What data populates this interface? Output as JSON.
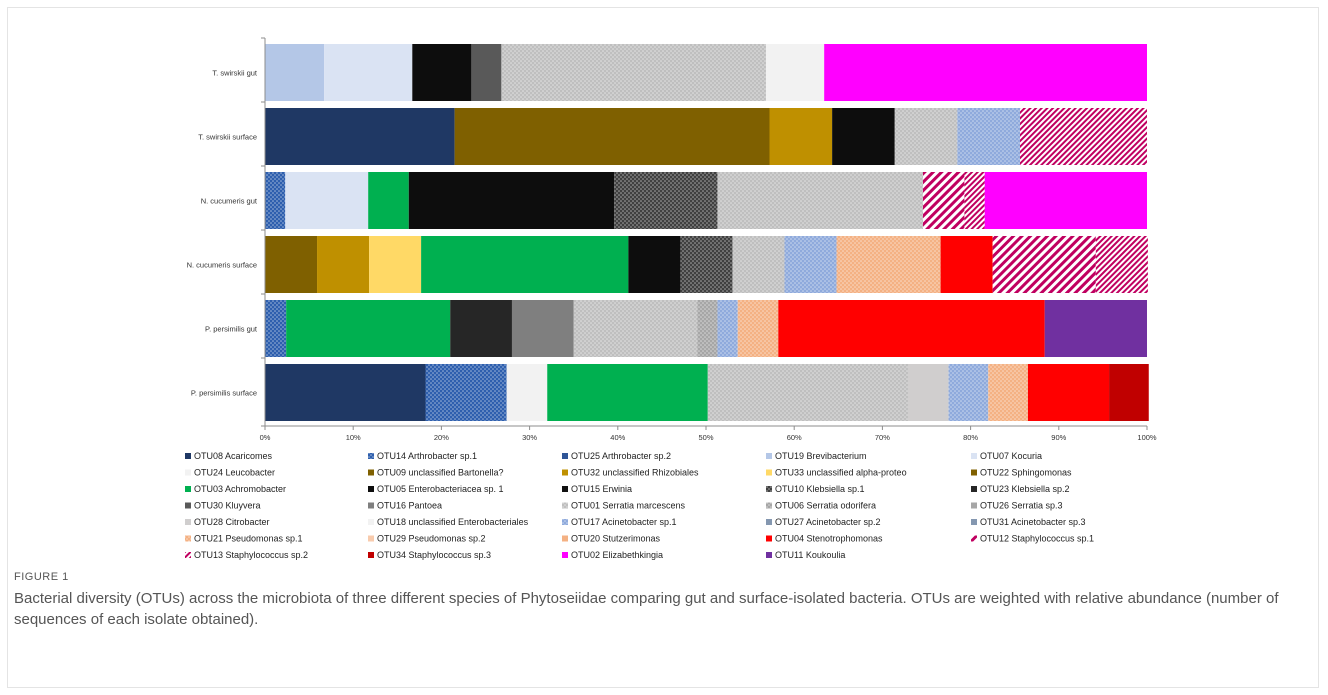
{
  "caption": {
    "label": "FIGURE 1",
    "text": "Bacterial diversity (OTUs) across the microbiota of three different species of Phytoseiidae comparing gut and surface-isolated bacteria. OTUs are weighted with relative abundance (number of sequences of each isolate obtained)."
  },
  "chart_data": {
    "type": "bar",
    "orientation": "horizontal",
    "stacked": true,
    "title": "",
    "xlabel": "",
    "ylabel": "",
    "xlim": [
      0,
      100
    ],
    "x_ticks": [
      "0%",
      "10%",
      "20%",
      "30%",
      "40%",
      "50%",
      "60%",
      "70%",
      "80%",
      "90%",
      "100%"
    ],
    "legend_position": "bottom",
    "grid": false,
    "categories": [
      "T. swirskii gut",
      "T. swirskii surface",
      "N. cucumeris gut",
      "N. cucumeris surface",
      "P. persimilis gut",
      "P. persimilis surface"
    ],
    "series": [
      {
        "name": "OTU08 Acaricomes",
        "color": "#1f3864",
        "pattern": "solid",
        "values": [
          0,
          21.5,
          0,
          0,
          0,
          18.2
        ]
      },
      {
        "name": "OTU14 Arthrobacter sp.1",
        "color": "#2e5fae",
        "pattern": "dots",
        "values": [
          0,
          0,
          2.3,
          0,
          2.4,
          9.2
        ]
      },
      {
        "name": "OTU25 Arthrobacter sp.2",
        "color": "#2f5597",
        "pattern": "solid",
        "values": [
          0,
          0,
          0,
          0,
          0,
          0
        ]
      },
      {
        "name": "OTU19 Brevibacterium",
        "color": "#b4c7e7",
        "pattern": "solid",
        "values": [
          6.7,
          0,
          0,
          0,
          0,
          0
        ]
      },
      {
        "name": "OTU07 Kocuria",
        "color": "#dae3f3",
        "pattern": "solid",
        "values": [
          10,
          0,
          9.4,
          0,
          0,
          0
        ]
      },
      {
        "name": "OTU24 Leucobacter",
        "color": "#f2f2f2",
        "pattern": "solid",
        "values": [
          0,
          0,
          0,
          0,
          0,
          4.6
        ]
      },
      {
        "name": "OTU09 unclassified Bartonella?",
        "color": "#7f6000",
        "pattern": "solid",
        "values": [
          0,
          35.7,
          0,
          5.9,
          0,
          0
        ]
      },
      {
        "name": "OTU32 unclassified Rhizobiales",
        "color": "#bf9000",
        "pattern": "solid",
        "values": [
          0,
          7.1,
          0,
          5.9,
          0,
          0
        ]
      },
      {
        "name": "OTU33 unclassified alpha-proteo",
        "color": "#ffd966",
        "pattern": "solid",
        "values": [
          0,
          0,
          0,
          5.9,
          0,
          0
        ]
      },
      {
        "name": "OTU22 Sphingomonas",
        "color": "#806000",
        "pattern": "solid",
        "values": [
          0,
          0,
          0,
          0,
          0,
          0
        ]
      },
      {
        "name": "OTU03 Achromobacter",
        "color": "#00b050",
        "pattern": "solid",
        "values": [
          0,
          0,
          4.6,
          23.5,
          18.6,
          18.2
        ]
      },
      {
        "name": "OTU05 Enterobacteriacea sp. 1",
        "color": "#0d0d0d",
        "pattern": "solid",
        "values": [
          6.7,
          7.1,
          23.3,
          5.9,
          0,
          0
        ]
      },
      {
        "name": "OTU15 Erwinia",
        "color": "#111111",
        "pattern": "solid",
        "values": [
          0,
          0,
          0,
          0,
          0,
          0
        ]
      },
      {
        "name": "OTU10 Klebsiella sp.1",
        "color": "#404040",
        "pattern": "dots",
        "values": [
          0,
          0,
          11.7,
          5.9,
          0,
          0
        ]
      },
      {
        "name": "OTU23 Klebsiella sp.2",
        "color": "#262626",
        "pattern": "solid",
        "values": [
          0,
          0,
          0,
          0,
          7,
          0
        ]
      },
      {
        "name": "OTU30 Kluyvera",
        "color": "#595959",
        "pattern": "solid",
        "values": [
          3.4,
          0,
          0,
          0,
          0,
          0
        ]
      },
      {
        "name": "OTU16 Pantoea",
        "color": "#7f7f7f",
        "pattern": "solid",
        "values": [
          0,
          0,
          0,
          0,
          7,
          0
        ]
      },
      {
        "name": "OTU01 Serratia marcescens",
        "color": "#bfbfbf",
        "pattern": "dots",
        "values": [
          30,
          7.1,
          23.3,
          5.9,
          14,
          22.7
        ]
      },
      {
        "name": "OTU06 Serratia odorifera",
        "color": "#a6a6a6",
        "pattern": "dots",
        "values": [
          0,
          0,
          0,
          0,
          2.3,
          0
        ]
      },
      {
        "name": "OTU26 Serratia sp.3",
        "color": "#a6a6a6",
        "pattern": "solid",
        "values": [
          0,
          0,
          0,
          0,
          0,
          0
        ]
      },
      {
        "name": "OTU28 Citrobacter",
        "color": "#d0cece",
        "pattern": "solid",
        "values": [
          0,
          0,
          0,
          0,
          0,
          4.6
        ]
      },
      {
        "name": "OTU18 unclassified Enterobacteriales",
        "color": "#f2f2f2",
        "pattern": "solid",
        "values": [
          6.6,
          0,
          0,
          0,
          0,
          0
        ]
      },
      {
        "name": "OTU17 Acinetobacter sp.1",
        "color": "#8faadc",
        "pattern": "dots",
        "values": [
          0,
          7.1,
          0,
          5.9,
          2.3,
          4.5
        ]
      },
      {
        "name": "OTU27 Acinetobacter sp.2",
        "color": "#8497b0",
        "pattern": "solid",
        "values": [
          0,
          0,
          0,
          0,
          0,
          0
        ]
      },
      {
        "name": "OTU31 Acinetobacter sp.3",
        "color": "#8497b0",
        "pattern": "solid",
        "values": [
          0,
          0,
          0,
          0,
          0,
          0
        ]
      },
      {
        "name": "OTU21 Pseudomonas sp.1",
        "color": "#f4b183",
        "pattern": "dots",
        "values": [
          0,
          0,
          0,
          11.8,
          4.6,
          4.5
        ]
      },
      {
        "name": "OTU29 Pseudomonas sp.2",
        "color": "#f8cbad",
        "pattern": "solid",
        "values": [
          0,
          0,
          0,
          0,
          0,
          0
        ]
      },
      {
        "name": "OTU20 Stutzerimonas",
        "color": "#f4b183",
        "pattern": "solid",
        "values": [
          0,
          0,
          0,
          0,
          0,
          0
        ]
      },
      {
        "name": "OTU04 Stenotrophomonas",
        "color": "#ff0000",
        "pattern": "solid",
        "values": [
          0,
          0,
          0,
          5.9,
          30.2,
          9.2
        ]
      },
      {
        "name": "OTU12 Staphylococcus sp.1",
        "color": "#c00060",
        "pattern": "stripes",
        "values": [
          0,
          0,
          4.7,
          11.7,
          0,
          0
        ]
      },
      {
        "name": "OTU13 Staphylococcus sp.2",
        "color": "#c00060",
        "pattern": "stripes-fine",
        "values": [
          0,
          14.4,
          2.3,
          5.9,
          0,
          0
        ]
      },
      {
        "name": "OTU34 Staphylococcus sp.3",
        "color": "#c00000",
        "pattern": "solid",
        "values": [
          0,
          0,
          0,
          0,
          0,
          4.5
        ]
      },
      {
        "name": "OTU02 Elizabethkingia",
        "color": "#ff00ff",
        "pattern": "solid",
        "values": [
          36.6,
          0,
          18.4,
          0,
          0,
          0
        ]
      },
      {
        "name": "OTU11 Koukoulia",
        "color": "#7030a0",
        "pattern": "solid",
        "values": [
          0,
          0,
          0,
          0,
          11.6,
          0
        ]
      }
    ]
  }
}
